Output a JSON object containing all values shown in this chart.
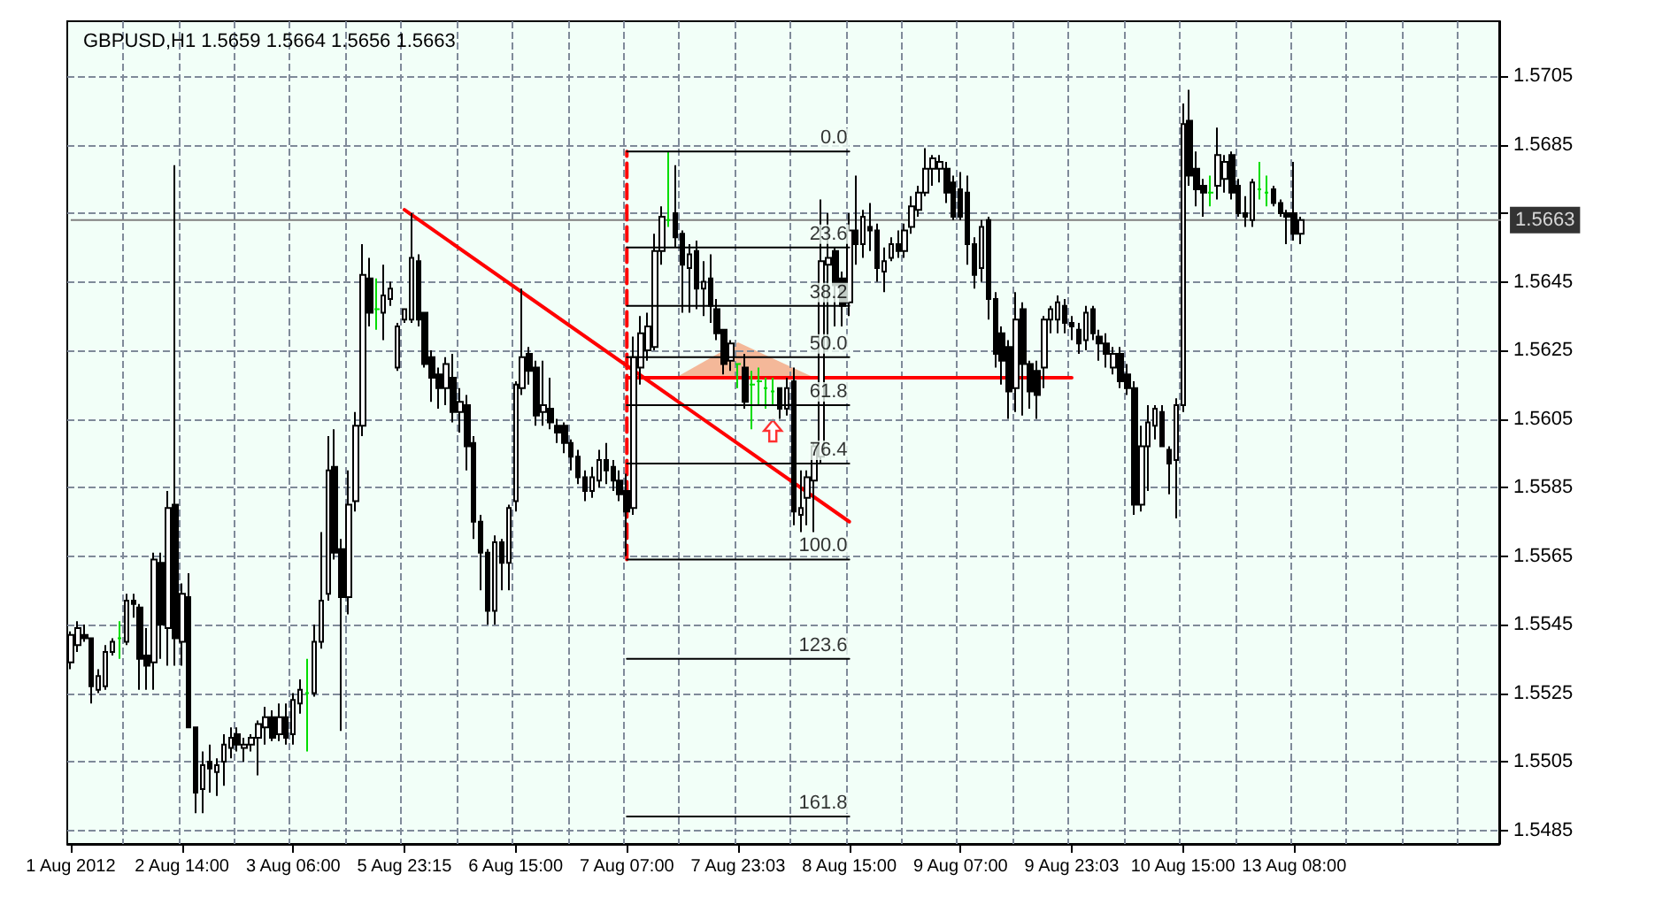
{
  "chart_data": {
    "type": "candlestick",
    "title": "GBPUSD,H1 1.5659 1.5664 1.5656 1.5663",
    "color": "#000000",
    "grid": true,
    "categories": [
      "1 Aug 2012",
      null,
      null,
      null,
      null,
      null,
      null,
      null,
      null,
      null,
      null,
      null,
      null,
      null,
      null,
      null,
      "2 Aug 14:00",
      null,
      null,
      null,
      null,
      null,
      null,
      null,
      null,
      null,
      null,
      null,
      null,
      null,
      null,
      null,
      "3 Aug 06:00",
      null,
      null,
      null,
      null,
      null,
      null,
      null,
      null,
      null,
      null,
      null,
      null,
      null,
      null,
      null,
      "5 Aug 23:15",
      null,
      null,
      null,
      null,
      null,
      null,
      null,
      null,
      null,
      null,
      null,
      null,
      null,
      null,
      null,
      "6 Aug 15:00",
      null,
      null,
      null,
      null,
      null,
      null,
      null,
      null,
      null,
      null,
      null,
      null,
      null,
      null,
      null,
      "7 Aug 07:00",
      null,
      null,
      null,
      null,
      null,
      null,
      null,
      null,
      null,
      null,
      null,
      null,
      null,
      null,
      null,
      "7 Aug 23:03",
      null,
      null,
      null,
      null,
      null,
      null,
      null,
      null,
      null,
      null,
      null,
      null,
      null,
      null,
      null,
      "8 Aug 15:00",
      null,
      null,
      null,
      null,
      null,
      null,
      null,
      null,
      null,
      null,
      null,
      null,
      null,
      null,
      null,
      "9 Aug 07:00",
      null,
      null,
      null,
      null,
      null,
      null,
      null,
      null,
      null,
      null,
      null,
      null,
      null,
      null,
      null,
      "9 Aug 23:03",
      null,
      null,
      null,
      null,
      null,
      null,
      null,
      null,
      null,
      null,
      null,
      null,
      null,
      null,
      null,
      "10 Aug 15:00",
      null,
      null,
      null,
      null,
      null,
      null,
      null,
      null,
      null,
      null,
      null,
      null,
      null,
      null,
      null,
      "13 Aug 08:00",
      null,
      null,
      null,
      null,
      null,
      null,
      null,
      null,
      null,
      null,
      null,
      null,
      null,
      null,
      null,
      null,
      null,
      null,
      null,
      null,
      null,
      null,
      null,
      null,
      null,
      null,
      null,
      null,
      null
    ],
    "ohlc": [
      [
        1.5534,
        1.5543,
        1.5532,
        1.5542
      ],
      [
        1.5539,
        1.5546,
        1.5537,
        1.5544
      ],
      [
        1.5542,
        1.5545,
        1.554,
        1.5541
      ],
      [
        1.5541,
        1.5541,
        1.5522,
        1.5527
      ],
      [
        1.5526,
        1.5532,
        1.5525,
        1.553
      ],
      [
        1.5527,
        1.5539,
        1.5526,
        1.5537
      ],
      [
        1.5537,
        1.5541,
        1.5536,
        1.554
      ],
      [
        1.5541,
        1.5546,
        1.5535,
        1.5541
      ],
      [
        1.554,
        1.5554,
        1.5539,
        1.5552
      ],
      [
        1.5552,
        1.5554,
        1.5547,
        1.5551
      ],
      [
        1.555,
        1.5551,
        1.5526,
        1.5535
      ],
      [
        1.5536,
        1.5544,
        1.5526,
        1.5533
      ],
      [
        1.5534,
        1.5566,
        1.5526,
        1.5564
      ],
      [
        1.5563,
        1.5566,
        1.5535,
        1.5545
      ],
      [
        1.5544,
        1.5584,
        1.5533,
        1.5579
      ],
      [
        1.558,
        1.5679,
        1.5533,
        1.5541
      ],
      [
        1.554,
        1.5557,
        1.5533,
        1.5554
      ],
      [
        1.5553,
        1.556,
        1.5515,
        1.5515
      ],
      [
        1.5515,
        1.5515,
        1.549,
        1.5496
      ],
      [
        1.5497,
        1.5508,
        1.549,
        1.5504
      ],
      [
        1.5505,
        1.551,
        1.5496,
        1.5503
      ],
      [
        1.5502,
        1.5506,
        1.5495,
        1.5504
      ],
      [
        1.5505,
        1.5513,
        1.5498,
        1.551
      ],
      [
        1.5509,
        1.5515,
        1.5506,
        1.5512
      ],
      [
        1.5513,
        1.5515,
        1.5508,
        1.551
      ],
      [
        1.5509,
        1.5512,
        1.5505,
        1.551
      ],
      [
        1.551,
        1.5513,
        1.5508,
        1.5512
      ],
      [
        1.5512,
        1.5517,
        1.5501,
        1.5516
      ],
      [
        1.5515,
        1.5521,
        1.551,
        1.5518
      ],
      [
        1.5518,
        1.552,
        1.5511,
        1.5512
      ],
      [
        1.5513,
        1.5522,
        1.5511,
        1.5518
      ],
      [
        1.5518,
        1.5522,
        1.551,
        1.5512
      ],
      [
        1.5513,
        1.5525,
        1.551,
        1.5523
      ],
      [
        1.5522,
        1.5529,
        1.5519,
        1.5526
      ],
      [
        1.5525,
        1.5535,
        1.5508,
        1.5525
      ],
      [
        1.5525,
        1.5545,
        1.5524,
        1.554
      ],
      [
        1.554,
        1.5572,
        1.5538,
        1.5552
      ],
      [
        1.5554,
        1.56,
        1.5552,
        1.559
      ],
      [
        1.5591,
        1.5602,
        1.5564,
        1.5566
      ],
      [
        1.5567,
        1.557,
        1.5514,
        1.5553
      ],
      [
        1.5553,
        1.559,
        1.5548,
        1.558
      ],
      [
        1.5581,
        1.5607,
        1.5578,
        1.5603
      ],
      [
        1.5603,
        1.5656,
        1.56,
        1.5647
      ],
      [
        1.5646,
        1.5652,
        1.5632,
        1.5636
      ],
      [
        1.5637,
        1.5646,
        1.5631,
        1.5637
      ],
      [
        1.5636,
        1.565,
        1.5628,
        1.5641
      ],
      [
        1.564,
        1.5645,
        1.5638,
        1.5643
      ],
      [
        1.562,
        1.5633,
        1.5619,
        1.5632
      ],
      [
        1.5634,
        1.5637,
        1.5633,
        1.5637
      ],
      [
        1.5634,
        1.5665,
        1.5633,
        1.5652
      ],
      [
        1.5651,
        1.5653,
        1.5632,
        1.5634
      ],
      [
        1.5636,
        1.5636,
        1.562,
        1.5621
      ],
      [
        1.5623,
        1.5625,
        1.561,
        1.5617
      ],
      [
        1.5618,
        1.562,
        1.5608,
        1.5614
      ],
      [
        1.5614,
        1.5623,
        1.5609,
        1.5621
      ],
      [
        1.5617,
        1.5624,
        1.5604,
        1.5607
      ],
      [
        1.5607,
        1.5614,
        1.5601,
        1.561
      ],
      [
        1.5609,
        1.5612,
        1.559,
        1.5597
      ],
      [
        1.5598,
        1.56,
        1.557,
        1.5575
      ],
      [
        1.5575,
        1.5577,
        1.5555,
        1.5566
      ],
      [
        1.5566,
        1.5567,
        1.5545,
        1.5549
      ],
      [
        1.5549,
        1.5571,
        1.5545,
        1.5569
      ],
      [
        1.5569,
        1.557,
        1.5555,
        1.5563
      ],
      [
        1.5563,
        1.558,
        1.5555,
        1.5579
      ],
      [
        1.5581,
        1.5616,
        1.5578,
        1.5615
      ],
      [
        1.5614,
        1.5643,
        1.5612,
        1.5623
      ],
      [
        1.5624,
        1.5626,
        1.5615,
        1.5619
      ],
      [
        1.562,
        1.5622,
        1.5603,
        1.5606
      ],
      [
        1.5607,
        1.5622,
        1.5603,
        1.5609
      ],
      [
        1.5608,
        1.5617,
        1.5602,
        1.5604
      ],
      [
        1.5603,
        1.5605,
        1.5598,
        1.5601
      ],
      [
        1.5603,
        1.5604,
        1.5595,
        1.5598
      ],
      [
        1.5598,
        1.5599,
        1.559,
        1.5594
      ],
      [
        1.5594,
        1.5596,
        1.5586,
        1.5588
      ],
      [
        1.5588,
        1.559,
        1.5581,
        1.5584
      ],
      [
        1.5584,
        1.5591,
        1.5582,
        1.5588
      ],
      [
        1.5587,
        1.5596,
        1.5585,
        1.5593
      ],
      [
        1.5593,
        1.5598,
        1.5586,
        1.559
      ],
      [
        1.5591,
        1.5593,
        1.5584,
        1.5587
      ],
      [
        1.5587,
        1.559,
        1.5581,
        1.5583
      ],
      [
        1.5584,
        1.5589,
        1.5565,
        1.5578
      ],
      [
        1.5579,
        1.5629,
        1.5577,
        1.5623
      ],
      [
        1.562,
        1.5635,
        1.5615,
        1.563
      ],
      [
        1.5625,
        1.5636,
        1.5622,
        1.5632
      ],
      [
        1.5626,
        1.5659,
        1.5625,
        1.5654
      ],
      [
        1.5654,
        1.5667,
        1.565,
        1.5664
      ],
      [
        1.5663,
        1.5683,
        1.5661,
        1.5663
      ],
      [
        1.5665,
        1.5679,
        1.5655,
        1.5658
      ],
      [
        1.5659,
        1.566,
        1.5636,
        1.565
      ],
      [
        1.5649,
        1.5656,
        1.5636,
        1.5653
      ],
      [
        1.5654,
        1.5657,
        1.5637,
        1.5643
      ],
      [
        1.5643,
        1.5651,
        1.5635,
        1.5645
      ],
      [
        1.5646,
        1.5653,
        1.5633,
        1.5638
      ],
      [
        1.5637,
        1.564,
        1.5628,
        1.563
      ],
      [
        1.5631,
        1.5631,
        1.5618,
        1.5621
      ],
      [
        1.5622,
        1.5628,
        1.5619,
        1.5627
      ],
      [
        1.5621,
        1.5621,
        1.5614,
        1.5621
      ],
      [
        1.562,
        1.5624,
        1.5608,
        1.561
      ],
      [
        1.5615,
        1.5619,
        1.5602,
        1.5615
      ],
      [
        1.5616,
        1.562,
        1.5609,
        1.5616
      ],
      [
        1.5614,
        1.5617,
        1.5608,
        1.5614
      ],
      [
        1.5613,
        1.5617,
        1.5609,
        1.5613
      ],
      [
        1.5614,
        1.5614,
        1.5605,
        1.5608
      ],
      [
        1.5608,
        1.5617,
        1.5606,
        1.5614
      ],
      [
        1.5616,
        1.562,
        1.5574,
        1.5578
      ],
      [
        1.5577,
        1.559,
        1.5572,
        1.5579
      ],
      [
        1.5582,
        1.559,
        1.5574,
        1.5588
      ],
      [
        1.5587,
        1.5598,
        1.5572,
        1.5597
      ],
      [
        1.5594,
        1.5669,
        1.5592,
        1.5651
      ],
      [
        1.565,
        1.5665,
        1.5625,
        1.5652
      ],
      [
        1.5654,
        1.5655,
        1.5632,
        1.5644
      ],
      [
        1.5646,
        1.5648,
        1.5632,
        1.5638
      ],
      [
        1.5639,
        1.5665,
        1.5635,
        1.566
      ],
      [
        1.566,
        1.5676,
        1.565,
        1.5656
      ],
      [
        1.5656,
        1.5666,
        1.5652,
        1.5664
      ],
      [
        1.5661,
        1.5668,
        1.5654,
        1.566
      ],
      [
        1.566,
        1.5662,
        1.5645,
        1.5649
      ],
      [
        1.5648,
        1.5655,
        1.5642,
        1.5651
      ],
      [
        1.5652,
        1.5658,
        1.5651,
        1.5656
      ],
      [
        1.5656,
        1.566,
        1.5652,
        1.5654
      ],
      [
        1.5654,
        1.5662,
        1.5652,
        1.566
      ],
      [
        1.5661,
        1.567,
        1.5659,
        1.5667
      ],
      [
        1.5666,
        1.5673,
        1.5664,
        1.5671
      ],
      [
        1.5671,
        1.5684,
        1.567,
        1.5678
      ],
      [
        1.5678,
        1.5682,
        1.5673,
        1.5681
      ],
      [
        1.5678,
        1.5682,
        1.5674,
        1.568
      ],
      [
        1.5678,
        1.568,
        1.5668,
        1.5671
      ],
      [
        1.5674,
        1.5676,
        1.5663,
        1.5664
      ],
      [
        1.5672,
        1.5677,
        1.5663,
        1.5664
      ],
      [
        1.5671,
        1.5676,
        1.565,
        1.5656
      ],
      [
        1.5656,
        1.5658,
        1.5643,
        1.5647
      ],
      [
        1.5649,
        1.5663,
        1.5645,
        1.5661
      ],
      [
        1.5663,
        1.5664,
        1.5634,
        1.564
      ],
      [
        1.564,
        1.5642,
        1.562,
        1.5624
      ],
      [
        1.563,
        1.5632,
        1.5615,
        1.5622
      ],
      [
        1.5626,
        1.5628,
        1.5605,
        1.5613
      ],
      [
        1.5614,
        1.5642,
        1.5607,
        1.5634
      ],
      [
        1.5637,
        1.5639,
        1.5606,
        1.5621
      ],
      [
        1.5621,
        1.5622,
        1.5608,
        1.5613
      ],
      [
        1.5619,
        1.5622,
        1.5605,
        1.5612
      ],
      [
        1.562,
        1.5635,
        1.5614,
        1.5634
      ],
      [
        1.5634,
        1.5638,
        1.563,
        1.5637
      ],
      [
        1.5634,
        1.5641,
        1.563,
        1.5639
      ],
      [
        1.5638,
        1.564,
        1.563,
        1.5633
      ],
      [
        1.5633,
        1.5635,
        1.5628,
        1.5632
      ],
      [
        1.5631,
        1.5633,
        1.5624,
        1.5627
      ],
      [
        1.5628,
        1.5638,
        1.5625,
        1.5636
      ],
      [
        1.5637,
        1.5638,
        1.5628,
        1.563
      ],
      [
        1.5629,
        1.5631,
        1.5622,
        1.5627
      ],
      [
        1.5627,
        1.563,
        1.562,
        1.5624
      ],
      [
        1.562,
        1.5626,
        1.5618,
        1.5624
      ],
      [
        1.5624,
        1.5626,
        1.5614,
        1.5616
      ],
      [
        1.5618,
        1.5621,
        1.5612,
        1.5614
      ],
      [
        1.5614,
        1.5616,
        1.5577,
        1.558
      ],
      [
        1.558,
        1.5603,
        1.5578,
        1.5597
      ],
      [
        1.5597,
        1.5609,
        1.5584,
        1.5604
      ],
      [
        1.5603,
        1.5609,
        1.5599,
        1.5608
      ],
      [
        1.5607,
        1.5609,
        1.5597,
        1.5597
      ],
      [
        1.5596,
        1.5597,
        1.5583,
        1.5592
      ],
      [
        1.5593,
        1.5611,
        1.5576,
        1.5609
      ],
      [
        1.5609,
        1.5697,
        1.5607,
        1.5691
      ],
      [
        1.5692,
        1.5701,
        1.5673,
        1.5676
      ],
      [
        1.5678,
        1.5683,
        1.5667,
        1.5672
      ],
      [
        1.5673,
        1.5675,
        1.5664,
        1.5671
      ],
      [
        1.5671,
        1.5676,
        1.5667,
        1.5671
      ],
      [
        1.5673,
        1.569,
        1.5669,
        1.5682
      ],
      [
        1.5675,
        1.5682,
        1.5671,
        1.568
      ],
      [
        1.5682,
        1.5683,
        1.5669,
        1.5671
      ],
      [
        1.5673,
        1.5675,
        1.5664,
        1.5665
      ],
      [
        1.5665,
        1.567,
        1.5661,
        1.5664
      ],
      [
        1.5663,
        1.5675,
        1.5661,
        1.5674
      ],
      [
        1.5672,
        1.568,
        1.5669,
        1.5672
      ],
      [
        1.5671,
        1.5676,
        1.5667,
        1.5671
      ],
      [
        1.5672,
        1.5673,
        1.5667,
        1.5668
      ],
      [
        1.5668,
        1.5669,
        1.5664,
        1.5665
      ],
      [
        1.5665,
        1.5666,
        1.5656,
        1.5664
      ],
      [
        1.5665,
        1.568,
        1.5657,
        1.5659
      ],
      [
        1.5659,
        1.5664,
        1.5656,
        1.5663
      ],
      null,
      null,
      null,
      null,
      null,
      null,
      null,
      null,
      null,
      null,
      null,
      null,
      null,
      null,
      null,
      null,
      null,
      null,
      null,
      null,
      null,
      null,
      null,
      null,
      null,
      null,
      null,
      null
    ],
    "colors": [
      "#000000",
      "#000000",
      "#000000",
      "#000000",
      "#000000",
      "#000000",
      "#000000",
      "#00dd00",
      "#000000",
      "#000000",
      "#000000",
      "#000000",
      "#000000",
      "#000000",
      "#000000",
      "#000000",
      "#000000",
      "#000000",
      "#000000",
      "#000000",
      "#000000",
      "#000000",
      "#000000",
      "#000000",
      "#000000",
      "#000000",
      "#000000",
      "#000000",
      "#000000",
      "#000000",
      "#000000",
      "#000000",
      "#000000",
      "#000000",
      "#00dd00",
      "#000000",
      "#000000",
      "#000000",
      "#000000",
      "#000000",
      "#000000",
      "#000000",
      "#000000",
      "#000000",
      "#00dd00",
      "#000000",
      "#000000",
      "#000000",
      "#000000",
      "#000000",
      "#000000",
      "#000000",
      "#000000",
      "#000000",
      "#000000",
      "#000000",
      "#000000",
      "#000000",
      "#000000",
      "#000000",
      "#000000",
      "#000000",
      "#000000",
      "#000000",
      "#000000",
      "#000000",
      "#000000",
      "#000000",
      "#000000",
      "#000000",
      "#000000",
      "#000000",
      "#000000",
      "#000000",
      "#000000",
      "#000000",
      "#000000",
      "#000000",
      "#000000",
      "#000000",
      "#000000",
      "#000000",
      "#000000",
      "#000000",
      "#000000",
      "#000000",
      "#00dd00",
      "#000000",
      "#000000",
      "#000000",
      "#000000",
      "#000000",
      "#000000",
      "#000000",
      "#000000",
      "#000000",
      "#00dd00",
      "#000000",
      "#00dd00",
      "#00dd00",
      "#00dd00",
      "#00dd00",
      "#000000",
      "#000000",
      "#000000",
      "#000000",
      "#000000",
      "#000000",
      "#000000",
      "#000000",
      "#000000",
      "#000000",
      "#000000",
      "#000000",
      "#000000",
      "#000000",
      "#000000",
      "#000000",
      "#000000",
      "#000000",
      "#000000",
      "#000000",
      "#000000",
      "#000000",
      "#000000",
      "#000000",
      "#000000",
      "#000000",
      "#000000",
      "#000000",
      "#000000",
      "#000000",
      "#000000",
      "#000000",
      "#000000",
      "#000000",
      "#000000",
      "#000000",
      "#000000",
      "#000000",
      "#000000",
      "#000000",
      "#000000",
      "#000000",
      "#000000",
      "#000000",
      "#000000",
      "#000000",
      "#000000",
      "#000000",
      "#000000",
      "#000000",
      "#000000",
      "#000000",
      "#000000",
      "#000000",
      "#000000",
      "#000000",
      "#000000",
      "#000000",
      "#000000",
      "#000000",
      "#000000",
      "#000000",
      "#00dd00",
      "#000000",
      "#000000",
      "#000000",
      "#000000",
      "#000000",
      "#000000",
      "#00dd00",
      "#00dd00",
      "#000000",
      "#000000",
      "#000000",
      "#000000",
      "#000000",
      null,
      null,
      null,
      null,
      null,
      null,
      null,
      null,
      null,
      null,
      null,
      null,
      null,
      null,
      null,
      null,
      null,
      null,
      null,
      null,
      null,
      null,
      null,
      null,
      null,
      null,
      null,
      null
    ],
    "ylim": [
      1.5481,
      1.5721
    ],
    "yticks": [
      1.5485,
      1.5505,
      1.5525,
      1.5545,
      1.5565,
      1.5585,
      1.5605,
      1.5625,
      1.5645,
      {
        "value": 1.5665,
        "label": null
      },
      1.5685,
      1.5705
    ],
    "ref_lines": [
      {
        "axis": "y",
        "value": 1.5663,
        "label": "1.5663",
        "color": "#808080"
      }
    ],
    "series": [
      {
        "type": "line",
        "color": "#ff0000",
        "line_style": "dashed",
        "x": [
          "7 Aug 07:00",
          "7 Aug 07:00"
        ],
        "values": [
          1.5564,
          1.5683
        ]
      },
      {
        "type": "line",
        "color": "#ff0000",
        "line_style": "solid",
        "x": [
          "5 Aug 23:15",
          "8 Aug 15:00"
        ],
        "values": [
          1.5666,
          1.5575
        ]
      },
      {
        "type": "line",
        "color": "#ff0000",
        "line_style": "solid",
        "x": [
          "7 Aug 07:00",
          "9 Aug 23:03"
        ],
        "values": [
          1.5617,
          1.5617
        ]
      },
      {
        "type": "line",
        "name": "0.0",
        "color": "#000000",
        "x": [
          "7 Aug 07:00",
          "8 Aug 15:00"
        ],
        "values": [
          1.5683,
          1.5683
        ]
      },
      {
        "type": "line",
        "name": "23.6",
        "color": "#000000",
        "x": [
          "7 Aug 07:00",
          "8 Aug 15:00"
        ],
        "values": [
          1.5655,
          1.5655
        ]
      },
      {
        "type": "line",
        "name": "38.2",
        "color": "#000000",
        "x": [
          "7 Aug 07:00",
          "8 Aug 15:00"
        ],
        "values": [
          1.5638,
          1.5638
        ]
      },
      {
        "type": "line",
        "name": "50.0",
        "color": "#000000",
        "x": [
          "7 Aug 07:00",
          "8 Aug 15:00"
        ],
        "values": [
          1.5623,
          1.5623
        ]
      },
      {
        "type": "line",
        "name": "61.8",
        "color": "#000000",
        "x": [
          "7 Aug 07:00",
          "8 Aug 15:00"
        ],
        "values": [
          1.5609,
          1.5609
        ]
      },
      {
        "type": "line",
        "name": "76.4",
        "color": "#000000",
        "x": [
          "7 Aug 07:00",
          "8 Aug 15:00"
        ],
        "values": [
          1.5592,
          1.5592
        ]
      },
      {
        "type": "line",
        "name": "100.0",
        "color": "#000000",
        "x": [
          "7 Aug 07:00",
          "8 Aug 15:00"
        ],
        "values": [
          1.5564,
          1.5564
        ]
      },
      {
        "type": "line",
        "name": "123.6",
        "color": "#000000",
        "x": [
          "7 Aug 07:00",
          "8 Aug 15:00"
        ],
        "values": [
          1.5535,
          1.5535
        ]
      },
      {
        "type": "line",
        "name": "161.8",
        "color": "#000000",
        "x": [
          "7 Aug 07:00",
          "8 Aug 15:00"
        ],
        "values": [
          1.5489,
          1.5489
        ]
      }
    ]
  }
}
